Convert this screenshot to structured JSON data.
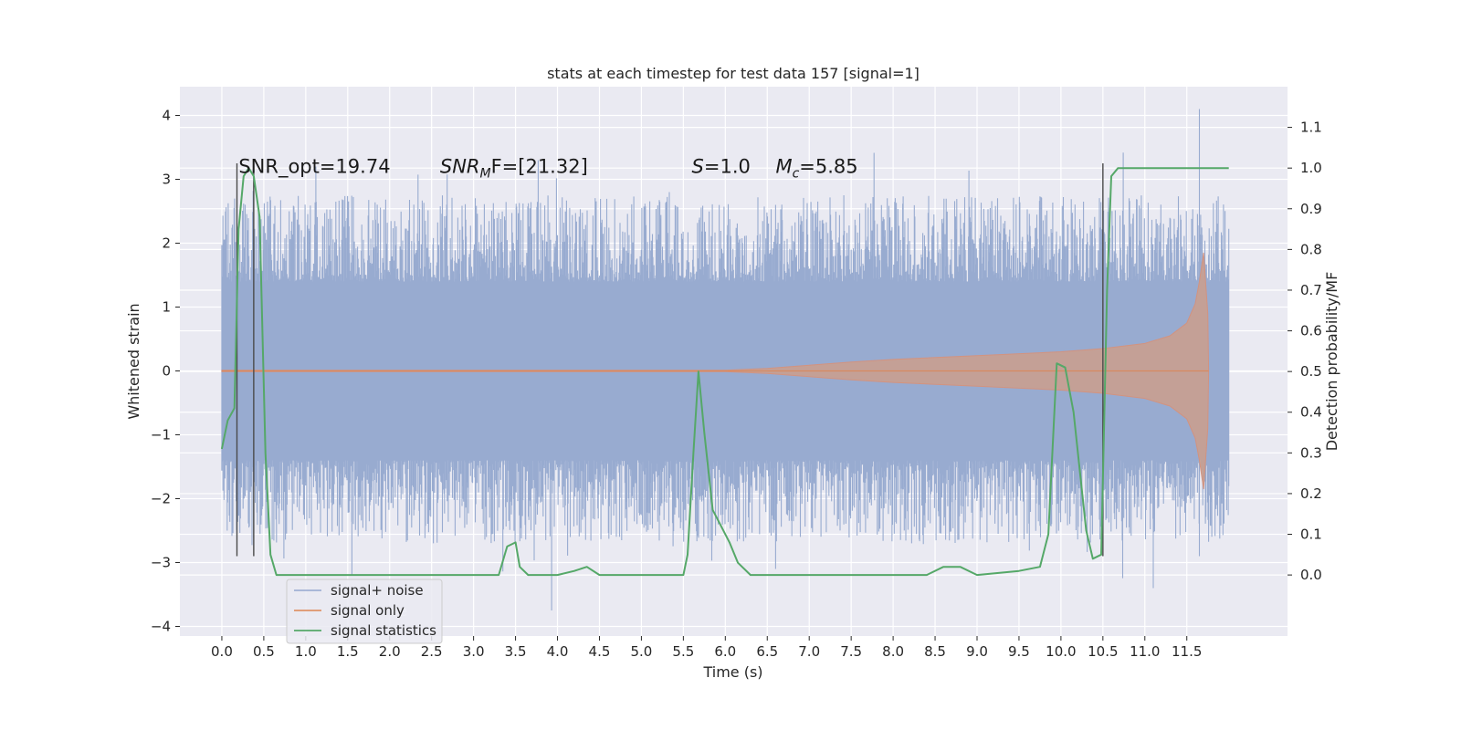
{
  "chart_data": {
    "type": "line",
    "title": "stats at each timestep for test data 157 [signal=1]",
    "xlabel": "Time (s)",
    "ylabel": "Whitened strain",
    "y2label": "Detection probability/MF",
    "xlim": [
      -0.5,
      12.7
    ],
    "ylim": [
      -4.15,
      4.45
    ],
    "y2lim": [
      -0.15,
      1.2
    ],
    "xticks": [
      "0.0",
      "0.5",
      "1.0",
      "1.5",
      "2.0",
      "2.5",
      "3.0",
      "3.5",
      "4.0",
      "4.5",
      "5.0",
      "5.5",
      "6.0",
      "6.5",
      "7.0",
      "7.5",
      "8.0",
      "8.5",
      "9.0",
      "9.5",
      "10.0",
      "10.5",
      "11.0",
      "11.5"
    ],
    "yticks": [
      "4",
      "3",
      "2",
      "1",
      "0",
      "−1",
      "−2",
      "−3",
      "−4"
    ],
    "y2ticks": [
      "1.1",
      "1.0",
      "0.9",
      "0.8",
      "0.7",
      "0.6",
      "0.5",
      "0.4",
      "0.3",
      "0.2",
      "0.1",
      "0.0"
    ],
    "annotations": [
      {
        "label": "SNR_opt=19.74",
        "x": 0.2,
        "y": 3.1
      },
      {
        "base": "SNR",
        "sub": "M",
        "rest": "F=[21.32]",
        "x": 2.6,
        "y": 3.1
      },
      {
        "base": "S",
        "sub": "",
        "rest": "=1.0",
        "x": 5.6,
        "y": 3.1
      },
      {
        "base": "M",
        "sub": "c",
        "rest": "=5.85",
        "x": 6.6,
        "y": 3.1
      }
    ],
    "vlines_x": [
      0.18,
      0.38,
      10.5
    ],
    "vline_range": [
      -2.9,
      3.25
    ],
    "noise": {
      "t_start": 0.0,
      "t_end": 12.0,
      "core_amplitude": 1.4,
      "max_spike": 4.1,
      "min_spike": -3.75
    },
    "signal_envelope": {
      "t": [
        0.0,
        6.0,
        6.5,
        7.0,
        7.5,
        8.0,
        9.0,
        10.0,
        10.5,
        11.0,
        11.3,
        11.5,
        11.6,
        11.65,
        11.7,
        11.75,
        11.76
      ],
      "amp": [
        0.01,
        0.01,
        0.04,
        0.09,
        0.14,
        0.18,
        0.24,
        0.3,
        0.35,
        0.43,
        0.55,
        0.75,
        1.05,
        1.4,
        1.85,
        0.9,
        0.02
      ]
    },
    "series": [
      {
        "name": "signal+ noise",
        "color": "#8da0cb"
      },
      {
        "name": "signal only",
        "color": "#dd8452"
      },
      {
        "name": "signal statistics",
        "color": "#55a868",
        "axis": "right",
        "x": [
          0.0,
          0.07,
          0.15,
          0.2,
          0.26,
          0.32,
          0.38,
          0.45,
          0.52,
          0.58,
          0.65,
          1.0,
          2.0,
          3.0,
          3.3,
          3.4,
          3.5,
          3.55,
          3.65,
          3.8,
          4.0,
          4.2,
          4.35,
          4.5,
          5.0,
          5.5,
          5.55,
          5.62,
          5.68,
          5.75,
          5.85,
          5.95,
          6.05,
          6.15,
          6.3,
          6.5,
          7.0,
          7.5,
          8.0,
          8.4,
          8.6,
          8.8,
          9.0,
          9.5,
          9.75,
          9.85,
          9.95,
          10.05,
          10.15,
          10.3,
          10.38,
          10.48,
          10.55,
          10.6,
          10.68,
          10.8,
          12.0
        ],
        "y": [
          0.31,
          0.38,
          0.41,
          0.85,
          0.98,
          1.0,
          0.98,
          0.88,
          0.3,
          0.05,
          0.0,
          0.0,
          0.0,
          0.0,
          0.0,
          0.07,
          0.08,
          0.02,
          0.0,
          0.0,
          0.0,
          0.01,
          0.02,
          0.0,
          0.0,
          0.0,
          0.05,
          0.3,
          0.5,
          0.35,
          0.16,
          0.12,
          0.08,
          0.03,
          0.0,
          0.0,
          0.0,
          0.0,
          0.0,
          0.0,
          0.02,
          0.02,
          0.0,
          0.01,
          0.02,
          0.1,
          0.52,
          0.51,
          0.4,
          0.11,
          0.04,
          0.05,
          0.7,
          0.98,
          1.0,
          1.0,
          1.0
        ]
      }
    ],
    "legend_loc": "lower-left",
    "ghost_legend_text": "se",
    "grid": true
  }
}
